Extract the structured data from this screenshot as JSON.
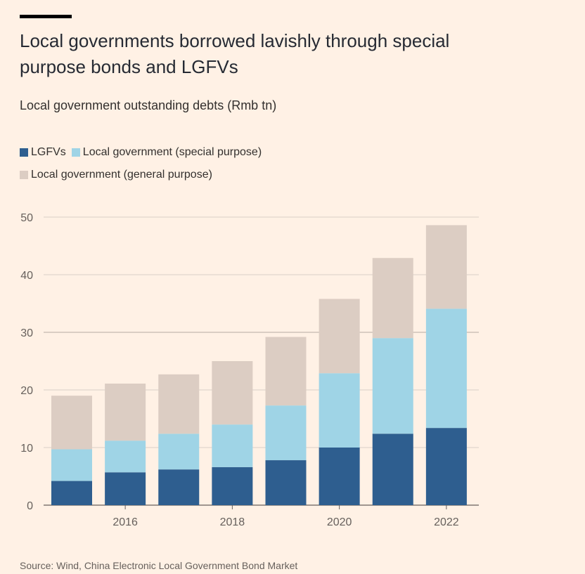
{
  "header": {
    "title": "Local governments borrowed lavishly through special purpose bonds and LGFVs",
    "subtitle": "Local government outstanding debts (Rmb tn)"
  },
  "footer": {
    "source": "Source: Wind, China Electronic Local Government Bond Market"
  },
  "chart_data": {
    "type": "bar",
    "stacked": true,
    "title": "Local governments borrowed lavishly through special purpose bonds and LGFVs",
    "subtitle": "Local government outstanding debts (Rmb tn)",
    "categories": [
      "2015",
      "2016",
      "2017",
      "2018",
      "2019",
      "2020",
      "2021",
      "2022"
    ],
    "x_tick_labels": [
      "2016",
      "2018",
      "2020",
      "2022"
    ],
    "y_ticks": [
      0,
      10,
      20,
      30,
      40,
      50
    ],
    "ylim": [
      0,
      50
    ],
    "grid": true,
    "legend_position": "top-left",
    "series": [
      {
        "name": "LGFVs",
        "color": "#2e5e8f",
        "values": [
          4.2,
          5.7,
          6.2,
          6.6,
          7.8,
          10.0,
          12.4,
          13.4
        ]
      },
      {
        "name": "Local government (special purpose)",
        "color": "#9fd4e6",
        "values": [
          5.5,
          5.5,
          6.2,
          7.4,
          9.5,
          12.9,
          16.6,
          20.7
        ]
      },
      {
        "name": "Local government (general purpose)",
        "color": "#dccdc3",
        "values": [
          9.3,
          9.9,
          10.3,
          11.0,
          11.9,
          12.9,
          13.9,
          14.5
        ]
      }
    ]
  }
}
